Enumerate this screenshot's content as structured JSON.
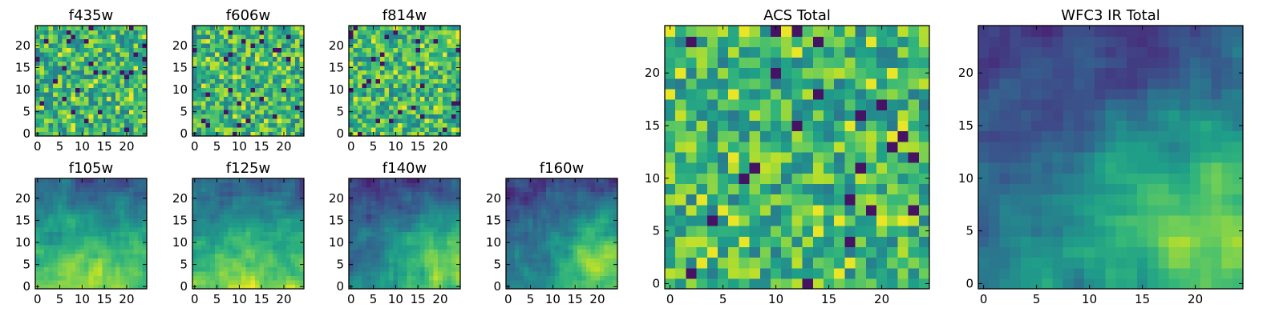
{
  "chart_data": [
    {
      "id": "f435w",
      "type": "heatmap",
      "title": "f435w",
      "grid": [
        25,
        25
      ],
      "xticks": [
        0,
        5,
        10,
        15,
        20
      ],
      "yticks": [
        0,
        5,
        10,
        15,
        20
      ],
      "xlim": [
        -0.5,
        24.5
      ],
      "ylim": [
        -0.5,
        24.5
      ],
      "colormap": "viridis",
      "pattern": "uniform-noise",
      "seed": 11
    },
    {
      "id": "f606w",
      "type": "heatmap",
      "title": "f606w",
      "grid": [
        25,
        25
      ],
      "xticks": [
        0,
        5,
        10,
        15,
        20
      ],
      "yticks": [
        0,
        5,
        10,
        15,
        20
      ],
      "xlim": [
        -0.5,
        24.5
      ],
      "ylim": [
        -0.5,
        24.5
      ],
      "colormap": "viridis",
      "pattern": "uniform-noise",
      "seed": 23
    },
    {
      "id": "f814w",
      "type": "heatmap",
      "title": "f814w",
      "grid": [
        25,
        25
      ],
      "xticks": [
        0,
        5,
        10,
        15,
        20
      ],
      "yticks": [
        0,
        5,
        10,
        15,
        20
      ],
      "xlim": [
        -0.5,
        24.5
      ],
      "ylim": [
        -0.5,
        24.5
      ],
      "colormap": "viridis",
      "pattern": "uniform-noise",
      "seed": 37
    },
    {
      "id": "f105w",
      "type": "heatmap",
      "title": "f105w",
      "grid": [
        25,
        25
      ],
      "xticks": [
        0,
        5,
        10,
        15,
        20
      ],
      "yticks": [
        0,
        5,
        10,
        15,
        20
      ],
      "xlim": [
        -0.5,
        24.5
      ],
      "ylim": [
        -0.5,
        24.5
      ],
      "colormap": "viridis",
      "pattern": "bright-lower",
      "seed": 41
    },
    {
      "id": "f125w",
      "type": "heatmap",
      "title": "f125w",
      "grid": [
        25,
        25
      ],
      "xticks": [
        0,
        5,
        10,
        15,
        20
      ],
      "yticks": [
        0,
        5,
        10,
        15,
        20
      ],
      "xlim": [
        -0.5,
        24.5
      ],
      "ylim": [
        -0.5,
        24.5
      ],
      "colormap": "viridis",
      "pattern": "bright-lower",
      "seed": 53
    },
    {
      "id": "f140w",
      "type": "heatmap",
      "title": "f140w",
      "grid": [
        25,
        25
      ],
      "xticks": [
        0,
        5,
        10,
        15,
        20
      ],
      "yticks": [
        0,
        5,
        10,
        15,
        20
      ],
      "xlim": [
        -0.5,
        24.5
      ],
      "ylim": [
        -0.5,
        24.5
      ],
      "colormap": "viridis",
      "pattern": "bright-lower-right",
      "seed": 67
    },
    {
      "id": "f160w",
      "type": "heatmap",
      "title": "f160w",
      "grid": [
        25,
        25
      ],
      "xticks": [
        0,
        5,
        10,
        15,
        20
      ],
      "yticks": [
        0,
        5,
        10,
        15,
        20
      ],
      "xlim": [
        -0.5,
        24.5
      ],
      "ylim": [
        -0.5,
        24.5
      ],
      "colormap": "viridis",
      "pattern": "bright-lower-right",
      "seed": 79
    },
    {
      "id": "acs",
      "type": "heatmap",
      "title": "ACS Total",
      "grid": [
        25,
        25
      ],
      "xticks": [
        0,
        5,
        10,
        15,
        20
      ],
      "yticks": [
        0,
        5,
        10,
        15,
        20
      ],
      "xlim": [
        -0.5,
        24.5
      ],
      "ylim": [
        -0.5,
        24.5
      ],
      "colormap": "viridis",
      "pattern": "uniform-noise",
      "seed": 97
    },
    {
      "id": "wfc3",
      "type": "heatmap",
      "title": "WFC3 IR Total",
      "grid": [
        25,
        25
      ],
      "xticks": [
        0,
        5,
        10,
        15,
        20
      ],
      "yticks": [
        0,
        5,
        10,
        15,
        20
      ],
      "xlim": [
        -0.5,
        24.5
      ],
      "ylim": [
        -0.5,
        24.5
      ],
      "colormap": "viridis",
      "pattern": "bright-lower-right",
      "seed": 101
    }
  ]
}
